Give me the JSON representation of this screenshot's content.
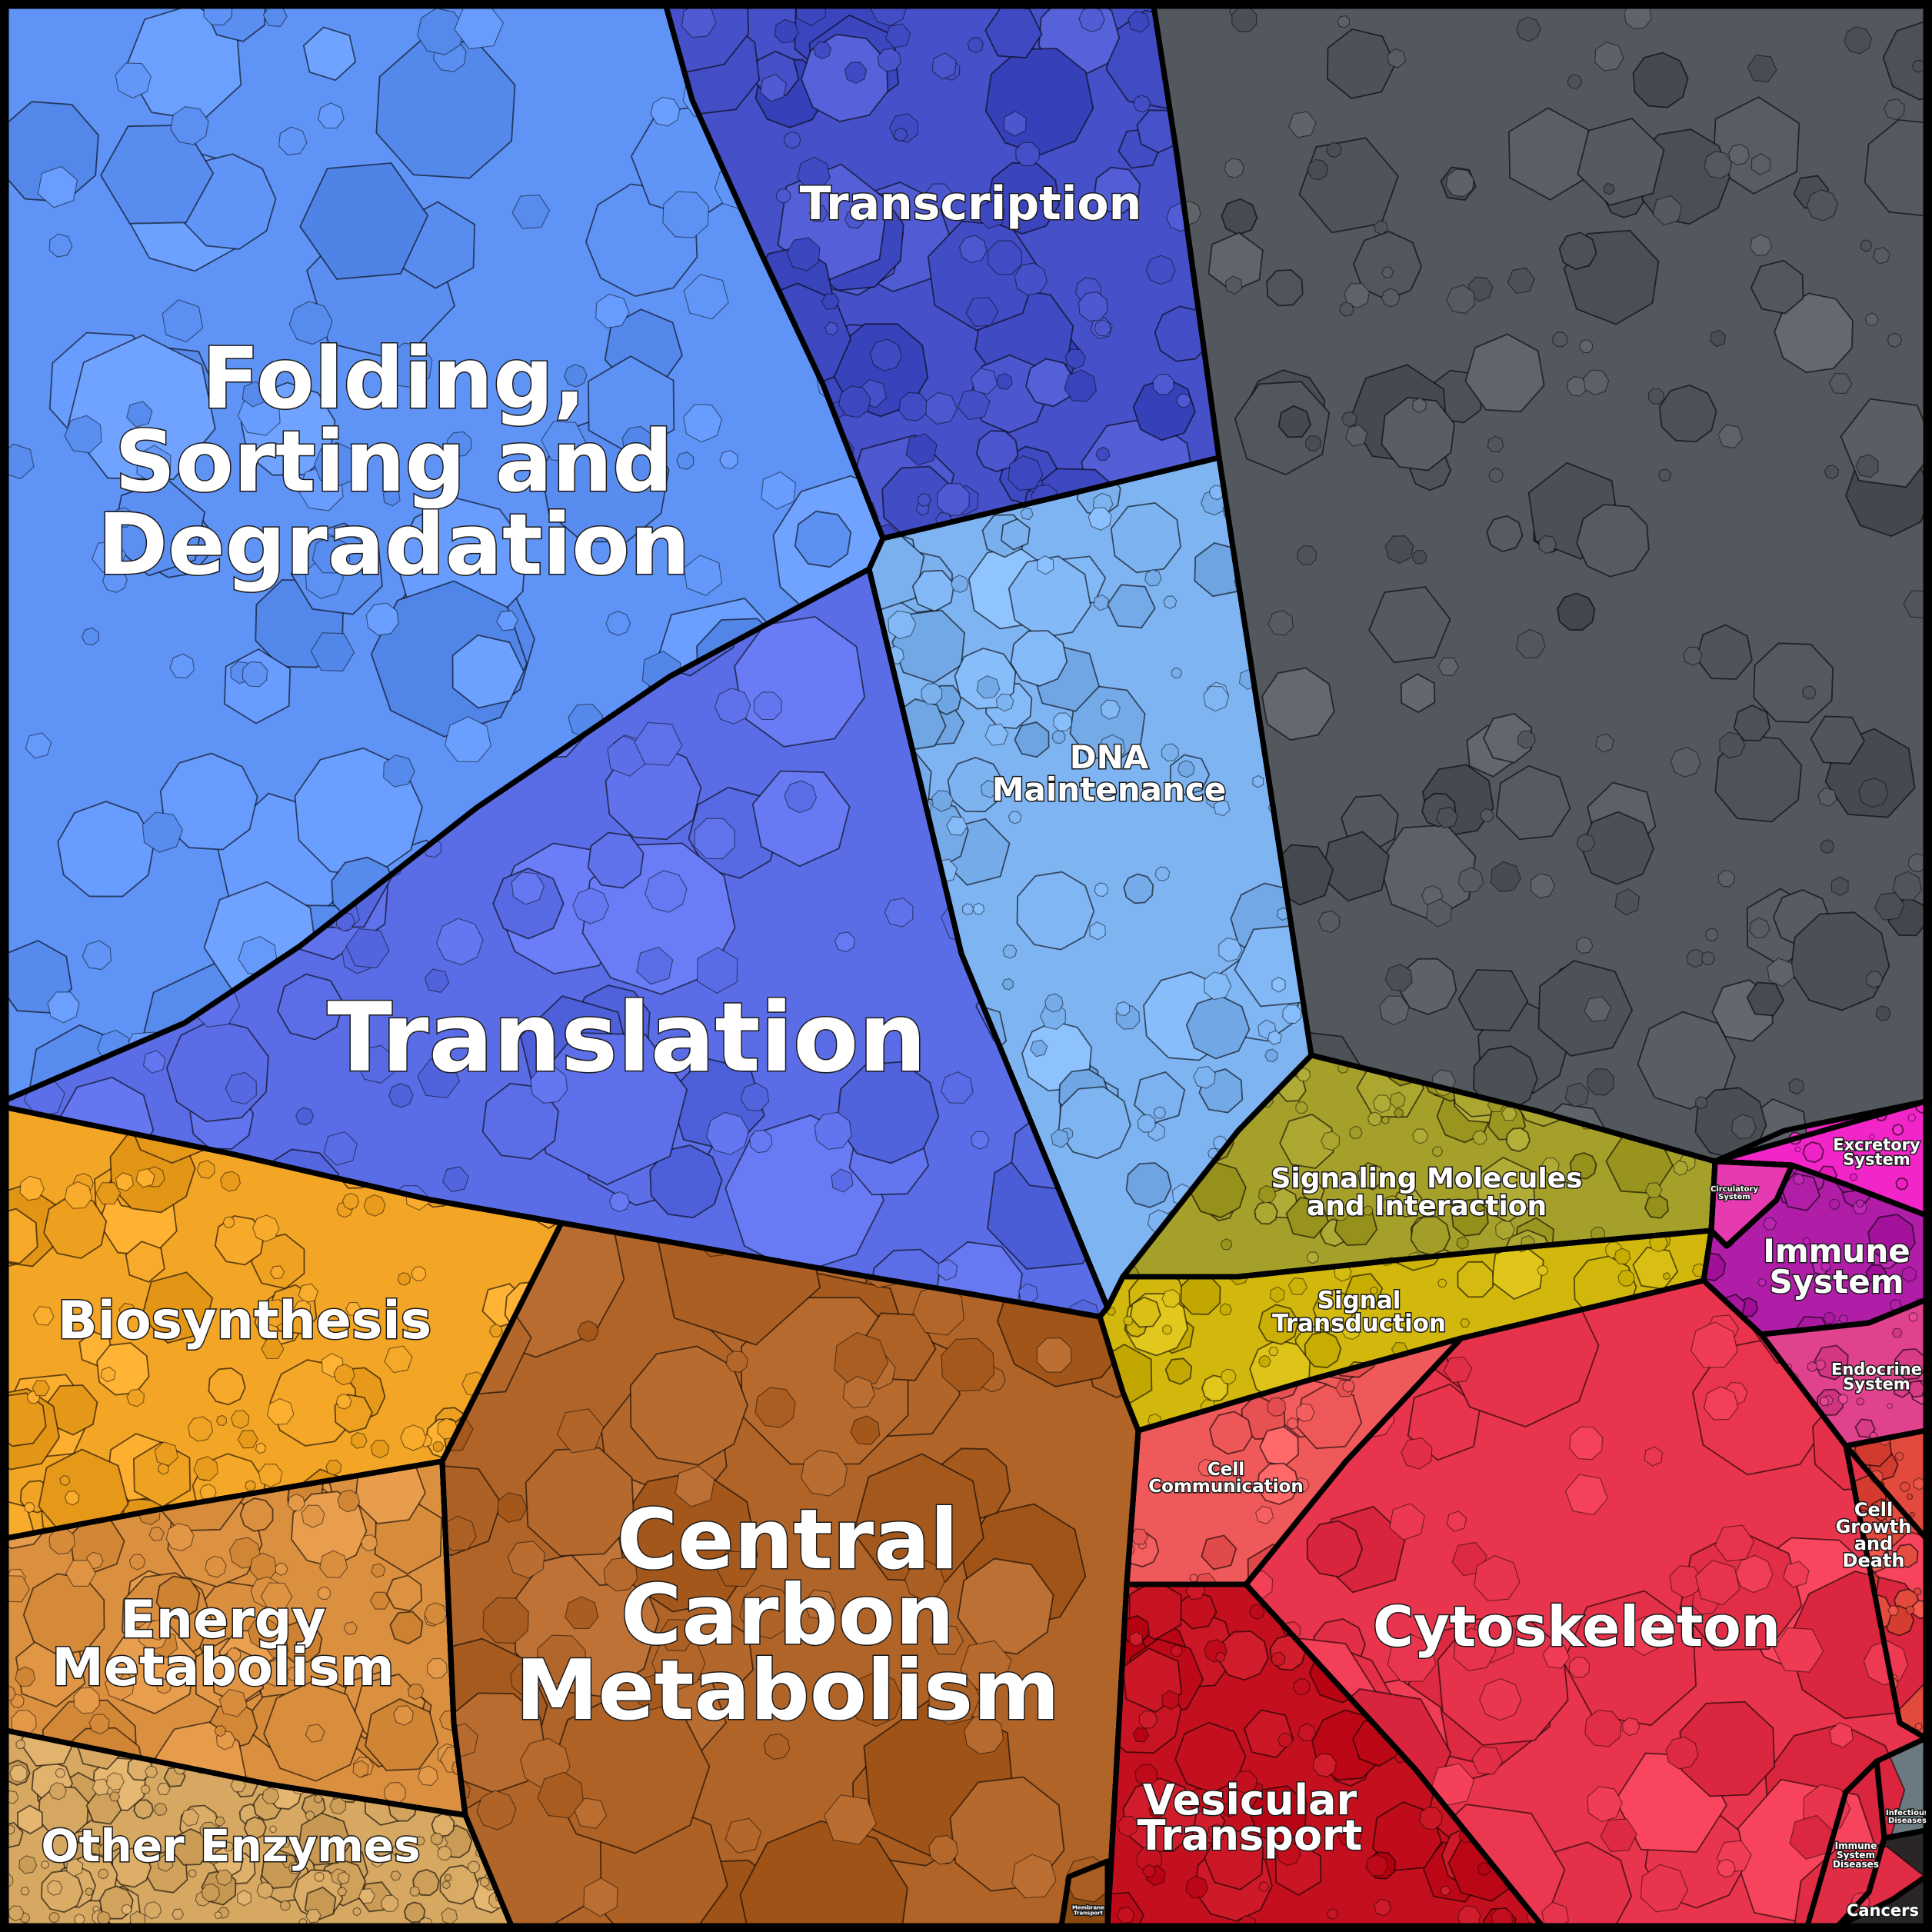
{
  "title": "",
  "regions": [
    {
      "id": "folding",
      "lines": [
        "Folding,",
        "Sorting and",
        "Degradation"
      ],
      "color": "#5f93f5"
    },
    {
      "id": "transcription",
      "lines": [
        "Transcription"
      ],
      "color": "#4650c8"
    },
    {
      "id": "unannotated",
      "lines": [],
      "color": "#53585e"
    },
    {
      "id": "dna",
      "lines": [
        "DNA",
        "Maintenance"
      ],
      "color": "#7fb4f2"
    },
    {
      "id": "translation",
      "lines": [
        "Translation"
      ],
      "color": "#5a6de6"
    },
    {
      "id": "biosynthesis",
      "lines": [
        "Biosynthesis"
      ],
      "color": "#f3a526"
    },
    {
      "id": "energy",
      "lines": [
        "Energy",
        "Metabolism"
      ],
      "color": "#db9040"
    },
    {
      "id": "other_enzymes",
      "lines": [
        "Other Enzymes"
      ],
      "color": "#d6a862"
    },
    {
      "id": "central_carbon",
      "lines": [
        "Central",
        "Carbon",
        "Metabolism"
      ],
      "color": "#b06428"
    },
    {
      "id": "signaling",
      "lines": [
        "Signaling Molecules",
        "and Interaction"
      ],
      "color": "#a5a02a"
    },
    {
      "id": "signal_transduction",
      "lines": [
        "Signal",
        "Transduction"
      ],
      "color": "#d2b80c"
    },
    {
      "id": "cell_communication",
      "lines": [
        "Cell",
        "Communication"
      ],
      "color": "#f0595a"
    },
    {
      "id": "cytoskeleton",
      "lines": [
        "Cytoskeleton"
      ],
      "color": "#e8344c"
    },
    {
      "id": "vesicular",
      "lines": [
        "Vesicular",
        "Transport"
      ],
      "color": "#c4101e"
    },
    {
      "id": "excretory",
      "lines": [
        "Excretory",
        "System"
      ],
      "color": "#f225c8"
    },
    {
      "id": "circulatory",
      "lines": [
        "Circulatory",
        "System"
      ],
      "color": "#e63ab0"
    },
    {
      "id": "immune",
      "lines": [
        "Immune",
        "System"
      ],
      "color": "#b01ea8"
    },
    {
      "id": "endocrine",
      "lines": [
        "Endocrine",
        "System"
      ],
      "color": "#e0428e"
    },
    {
      "id": "cell_growth",
      "lines": [
        "Cell",
        "Growth",
        "and",
        "Death"
      ],
      "color": "#e24a3e"
    },
    {
      "id": "infectious",
      "lines": [
        "Infectious",
        "Diseases"
      ],
      "color": "#6a7a80"
    },
    {
      "id": "immune_diseases",
      "lines": [
        "Immune",
        "System",
        "Diseases"
      ],
      "color": "#3a3030"
    },
    {
      "id": "cancers",
      "lines": [
        "Cancers"
      ],
      "color": "#2a2626"
    },
    {
      "id": "membrane_transport",
      "lines": [
        "Membrane",
        "Transport"
      ],
      "color": "#8a4a10"
    }
  ]
}
